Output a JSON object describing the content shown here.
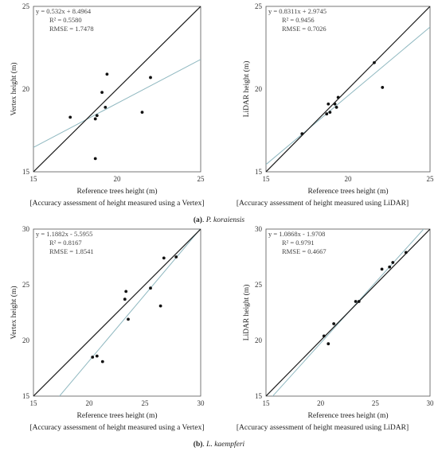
{
  "colors": {
    "one_to_one": "#1a1a1a",
    "fit": "#8fb8c0",
    "point": "#111111",
    "frame": "#555555"
  },
  "captions": [
    {
      "bold": "(a)",
      "rest": ". ",
      "species": "P. koraiensis"
    },
    {
      "bold": "(b)",
      "rest": ". ",
      "species": "L. kaempferi"
    }
  ],
  "chart_data": [
    {
      "type": "scatter",
      "panel": "a-vertex",
      "xlabel": "Reference trees height (m)",
      "ylabel": "Vertex height (m)",
      "xlim": [
        15,
        25
      ],
      "ylim": [
        15,
        25
      ],
      "xticks": [
        15,
        20,
        25
      ],
      "yticks": [
        15,
        20,
        25
      ],
      "stats": [
        "y = 0.532x + 8.4964",
        "R² = 0.5580",
        "RMSE = 1.7478"
      ],
      "fit": {
        "slope": 0.532,
        "intercept": 8.4964
      },
      "points": [
        [
          17.2,
          18.3
        ],
        [
          18.7,
          18.2
        ],
        [
          18.8,
          18.4
        ],
        [
          19.1,
          19.8
        ],
        [
          19.3,
          18.9
        ],
        [
          19.4,
          20.9
        ],
        [
          21.5,
          18.6
        ],
        [
          22.0,
          20.7
        ],
        [
          18.7,
          15.8
        ]
      ],
      "caption": "[Accuracy assessment of height measured using a Vertex]"
    },
    {
      "type": "scatter",
      "panel": "a-lidar",
      "xlabel": "Reference trees height (m)",
      "ylabel": "LiDAR height (m)",
      "xlim": [
        15,
        25
      ],
      "ylim": [
        15,
        25
      ],
      "xticks": [
        15,
        20,
        25
      ],
      "yticks": [
        15,
        20,
        25
      ],
      "stats": [
        "y = 0.8311x + 2.9745",
        "R² = 0.9456",
        "RMSE = 0.7026"
      ],
      "fit": {
        "slope": 0.8311,
        "intercept": 2.9745
      },
      "points": [
        [
          17.2,
          17.3
        ],
        [
          18.7,
          18.5
        ],
        [
          18.9,
          18.6
        ],
        [
          18.8,
          19.1
        ],
        [
          19.3,
          18.9
        ],
        [
          19.2,
          19.1
        ],
        [
          19.4,
          19.5
        ],
        [
          21.6,
          21.6
        ],
        [
          22.1,
          20.1
        ]
      ],
      "caption": "[Accuracy assessment of height measured using LiDAR]"
    },
    {
      "type": "scatter",
      "panel": "b-vertex",
      "xlabel": "Reference trees height (m)",
      "ylabel": "Vertex height (m)",
      "xlim": [
        15,
        30
      ],
      "ylim": [
        15,
        30
      ],
      "xticks": [
        15,
        20,
        25,
        30
      ],
      "yticks": [
        15,
        20,
        25,
        30
      ],
      "stats": [
        "y = 1.1882x - 5.5955",
        "R² = 0.8167",
        "RMSE = 1.8541"
      ],
      "fit": {
        "slope": 1.1882,
        "intercept": -5.5955
      },
      "points": [
        [
          20.3,
          18.5
        ],
        [
          20.7,
          18.6
        ],
        [
          21.2,
          18.1
        ],
        [
          23.2,
          23.7
        ],
        [
          23.3,
          24.4
        ],
        [
          23.5,
          21.9
        ],
        [
          25.5,
          24.7
        ],
        [
          26.4,
          23.1
        ],
        [
          26.7,
          27.4
        ],
        [
          27.8,
          27.5
        ]
      ],
      "caption": "[Accuracy assessment of height measured using a Vertex]"
    },
    {
      "type": "scatter",
      "panel": "b-lidar",
      "xlabel": "Reference trees height (m)",
      "ylabel": "LiDAR height (m)",
      "xlim": [
        15,
        30
      ],
      "ylim": [
        15,
        30
      ],
      "xticks": [
        15,
        20,
        25,
        30
      ],
      "yticks": [
        15,
        20,
        25,
        30
      ],
      "stats": [
        "y = 1.0868x - 1.9708",
        "R² = 0.9791",
        "RMSE = 0.4667"
      ],
      "fit": {
        "slope": 1.0868,
        "intercept": -1.9708
      },
      "points": [
        [
          20.3,
          20.4
        ],
        [
          20.7,
          19.7
        ],
        [
          21.2,
          21.5
        ],
        [
          23.2,
          23.5
        ],
        [
          23.5,
          23.5
        ],
        [
          25.6,
          26.4
        ],
        [
          26.3,
          26.6
        ],
        [
          26.6,
          27.0
        ],
        [
          27.8,
          27.9
        ]
      ],
      "caption": "[Accuracy assessment of height measured using LiDAR]"
    }
  ]
}
